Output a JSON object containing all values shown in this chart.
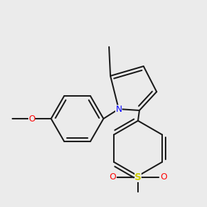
{
  "background_color": "#ebebeb",
  "bond_color": "#1a1a1a",
  "N_color": "#0000ff",
  "O_color": "#ff0000",
  "S_color": "#cccc00",
  "figsize": [
    3.0,
    3.0
  ],
  "dpi": 100,
  "xlim": [
    0,
    300
  ],
  "ylim": [
    0,
    300
  ]
}
